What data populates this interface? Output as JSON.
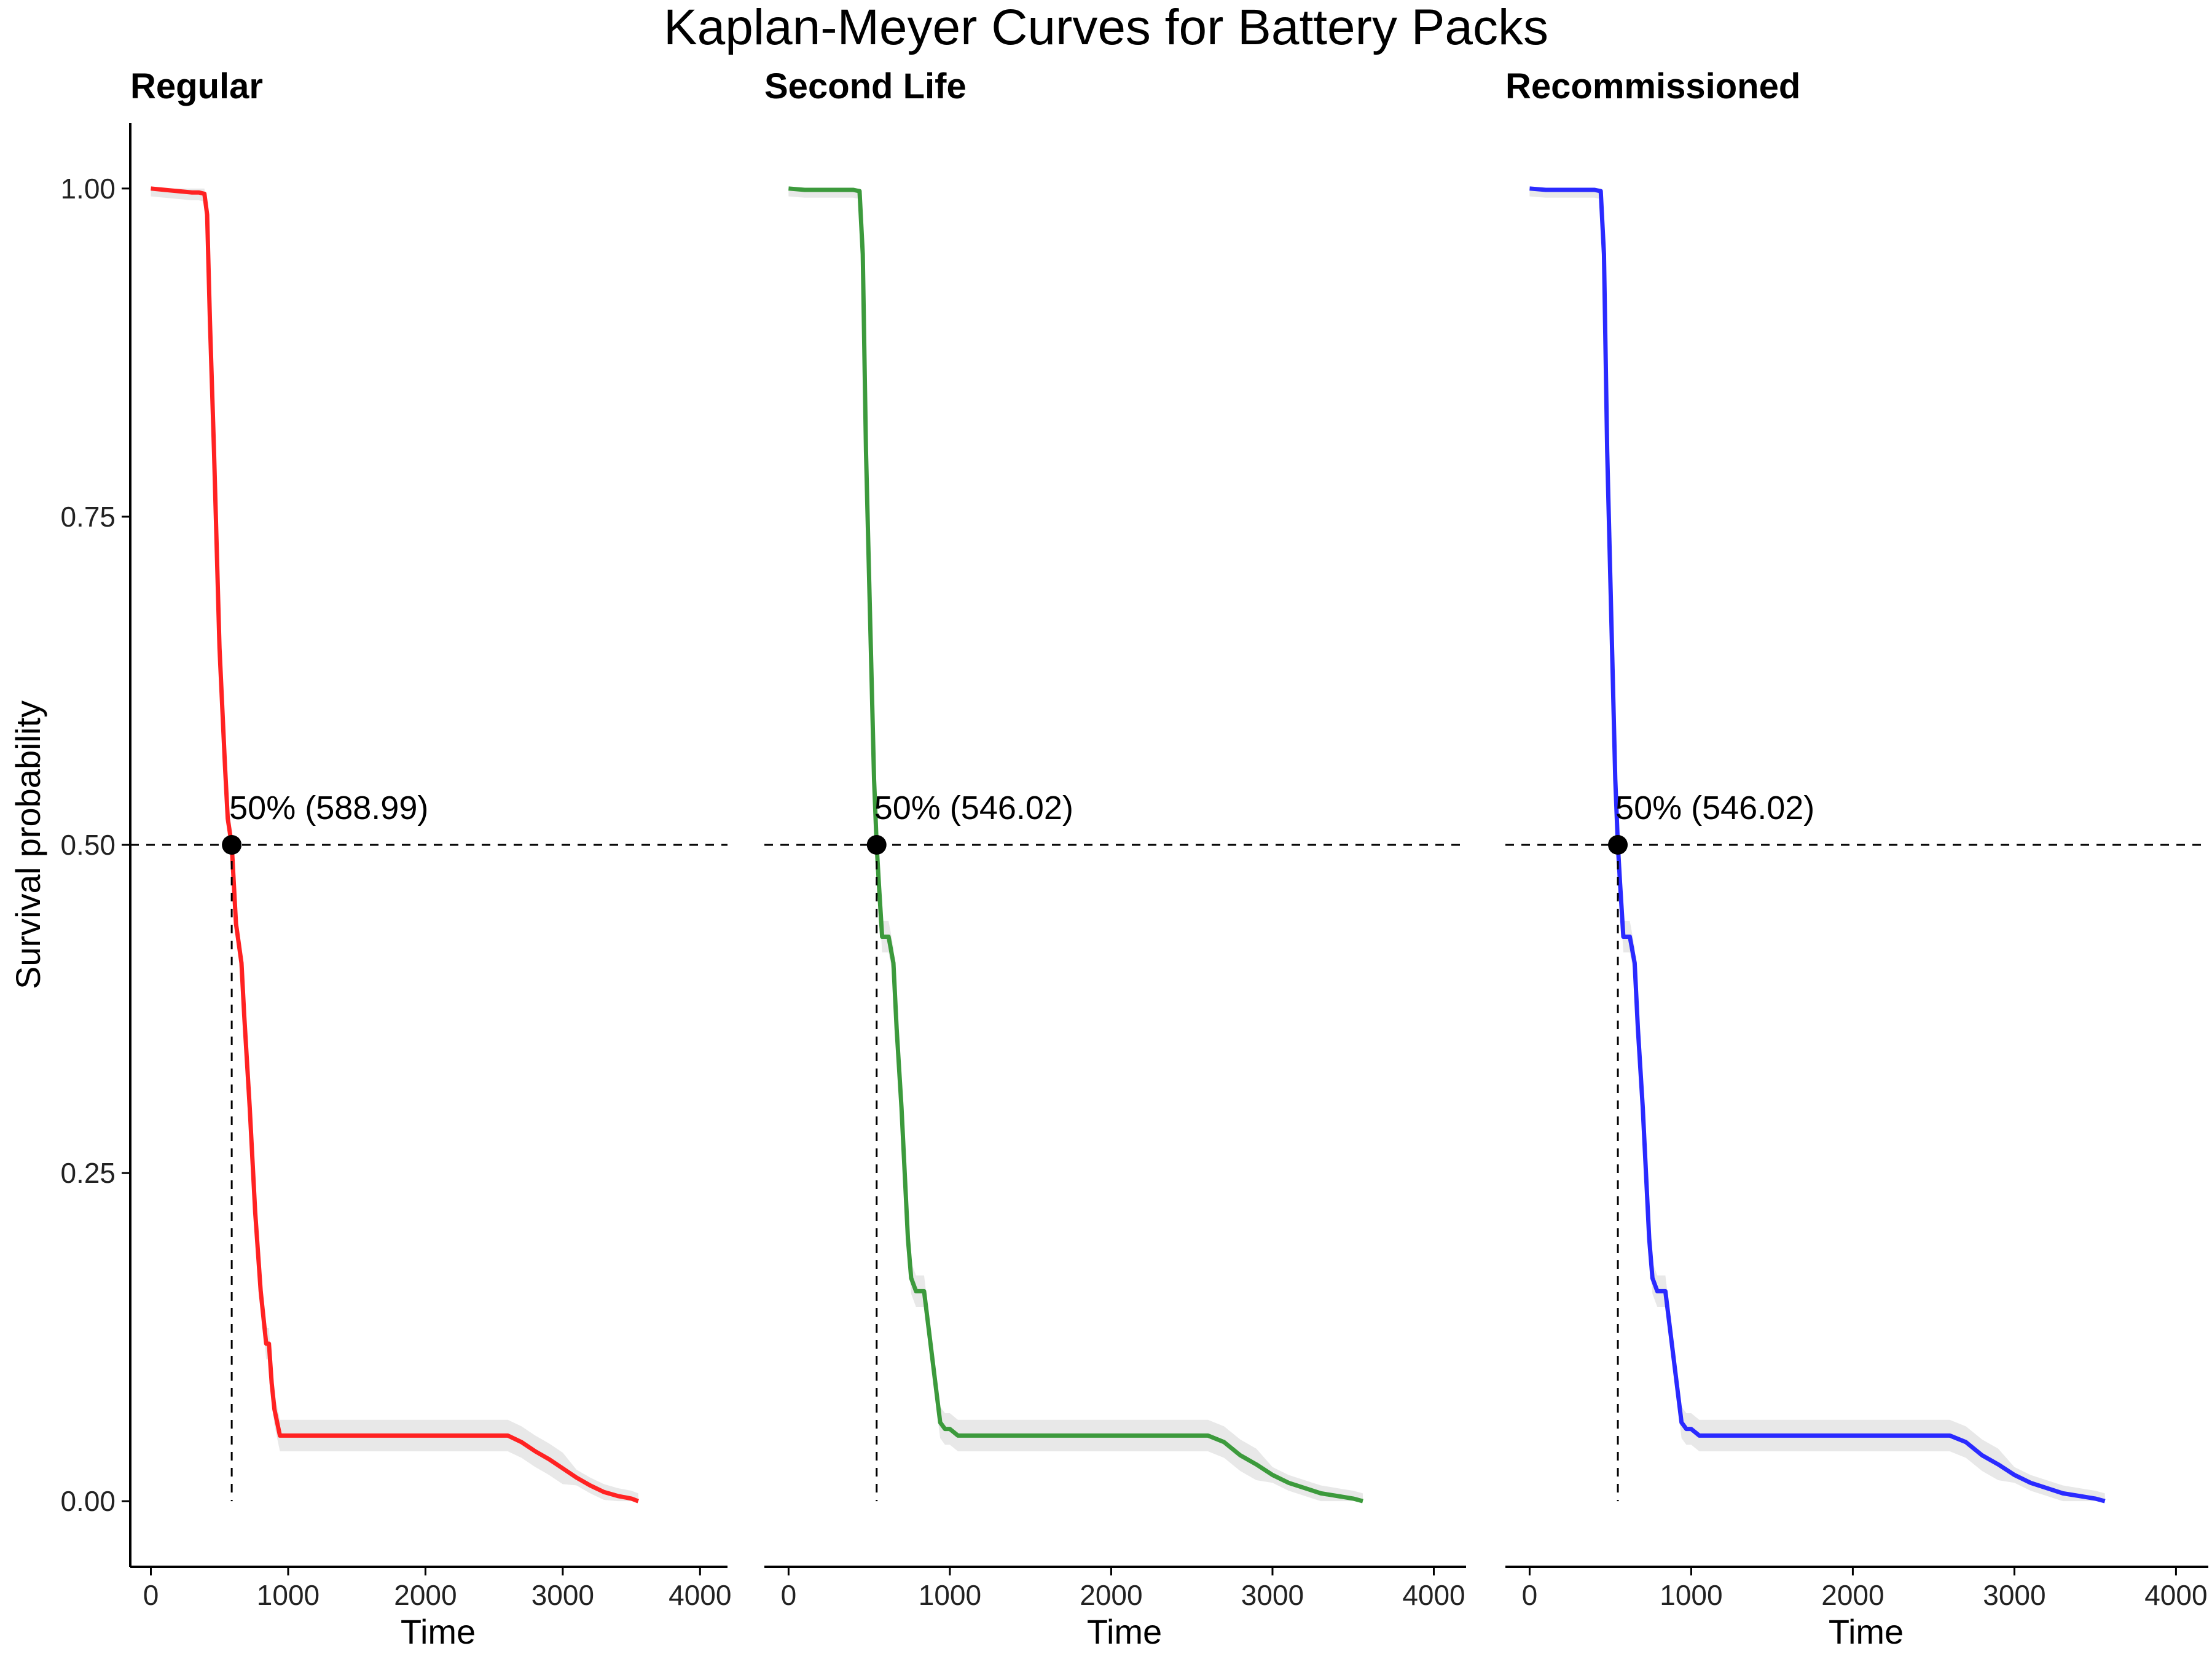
{
  "chart_data": {
    "type": "line",
    "title": "Kaplan-Meyer Curves for Battery Packs",
    "xlabel": "Time",
    "ylabel": "Survival probability",
    "xlim": [
      -150,
      4200
    ],
    "ylim": [
      -0.05,
      1.05
    ],
    "x_ticks": [
      0,
      1000,
      2000,
      3000,
      4000
    ],
    "x_tick_labels": [
      "0",
      "1000",
      "2000",
      "3000",
      "4000"
    ],
    "y_ticks": [
      0,
      0.25,
      0.5,
      0.75,
      1.0
    ],
    "y_tick_labels": [
      "0.00",
      "0.25",
      "0.50",
      "0.75",
      "1.00"
    ],
    "grid": false,
    "legend": "none",
    "panels": [
      {
        "name": "Regular",
        "color": "#ff2222",
        "median": 588.99,
        "median_label": "50% (588.99)",
        "x": [
          0,
          100,
          200,
          300,
          350,
          390,
          410,
          430,
          460,
          500,
          540,
          560,
          588.99,
          620,
          660,
          680,
          720,
          760,
          800,
          840,
          860,
          880,
          900,
          940,
          1000,
          1500,
          2000,
          2500,
          2600,
          2700,
          2800,
          2900,
          3000,
          3100,
          3200,
          3300,
          3400,
          3500,
          3550
        ],
        "y": [
          1.0,
          0.999,
          0.998,
          0.997,
          0.997,
          0.996,
          0.98,
          0.9,
          0.8,
          0.65,
          0.56,
          0.52,
          0.5,
          0.44,
          0.41,
          0.37,
          0.3,
          0.22,
          0.16,
          0.12,
          0.12,
          0.09,
          0.07,
          0.05,
          0.05,
          0.05,
          0.05,
          0.05,
          0.05,
          0.045,
          0.038,
          0.032,
          0.025,
          0.018,
          0.012,
          0.007,
          0.004,
          0.002,
          0.0
        ]
      },
      {
        "name": "Second Life",
        "color": "#3c9a3c",
        "median": 546.02,
        "median_label": "50% (546.02)",
        "x": [
          0,
          100,
          200,
          300,
          400,
          440,
          460,
          480,
          500,
          520,
          530,
          546.02,
          560,
          580,
          620,
          650,
          670,
          700,
          720,
          740,
          760,
          790,
          800,
          820,
          840,
          870,
          890,
          900,
          920,
          940,
          970,
          1000,
          1050,
          1100,
          1500,
          2000,
          2500,
          2600,
          2700,
          2800,
          2900,
          3000,
          3100,
          3200,
          3300,
          3400,
          3500,
          3560
        ],
        "y": [
          1.0,
          0.999,
          0.999,
          0.999,
          0.999,
          0.998,
          0.95,
          0.8,
          0.7,
          0.6,
          0.55,
          0.5,
          0.47,
          0.43,
          0.43,
          0.41,
          0.36,
          0.3,
          0.25,
          0.2,
          0.17,
          0.16,
          0.16,
          0.16,
          0.16,
          0.13,
          0.11,
          0.1,
          0.08,
          0.06,
          0.055,
          0.055,
          0.05,
          0.05,
          0.05,
          0.05,
          0.05,
          0.05,
          0.045,
          0.035,
          0.028,
          0.02,
          0.014,
          0.01,
          0.006,
          0.004,
          0.002,
          0.0
        ]
      },
      {
        "name": "Recommissioned",
        "color": "#2a2aff",
        "median": 546.02,
        "median_label": "50% (546.02)",
        "x": [
          0,
          100,
          200,
          300,
          400,
          440,
          460,
          480,
          500,
          520,
          530,
          546.02,
          560,
          580,
          620,
          650,
          670,
          700,
          720,
          740,
          760,
          790,
          800,
          820,
          840,
          870,
          890,
          900,
          920,
          940,
          970,
          1000,
          1050,
          1100,
          1500,
          2000,
          2500,
          2600,
          2700,
          2800,
          2900,
          3000,
          3100,
          3200,
          3300,
          3400,
          3500,
          3560
        ],
        "y": [
          1.0,
          0.999,
          0.999,
          0.999,
          0.999,
          0.998,
          0.95,
          0.8,
          0.7,
          0.6,
          0.55,
          0.5,
          0.47,
          0.43,
          0.43,
          0.41,
          0.36,
          0.3,
          0.25,
          0.2,
          0.17,
          0.16,
          0.16,
          0.16,
          0.16,
          0.13,
          0.11,
          0.1,
          0.08,
          0.06,
          0.055,
          0.055,
          0.05,
          0.05,
          0.05,
          0.05,
          0.05,
          0.05,
          0.045,
          0.035,
          0.028,
          0.02,
          0.014,
          0.01,
          0.006,
          0.004,
          0.002,
          0.0
        ]
      }
    ]
  }
}
